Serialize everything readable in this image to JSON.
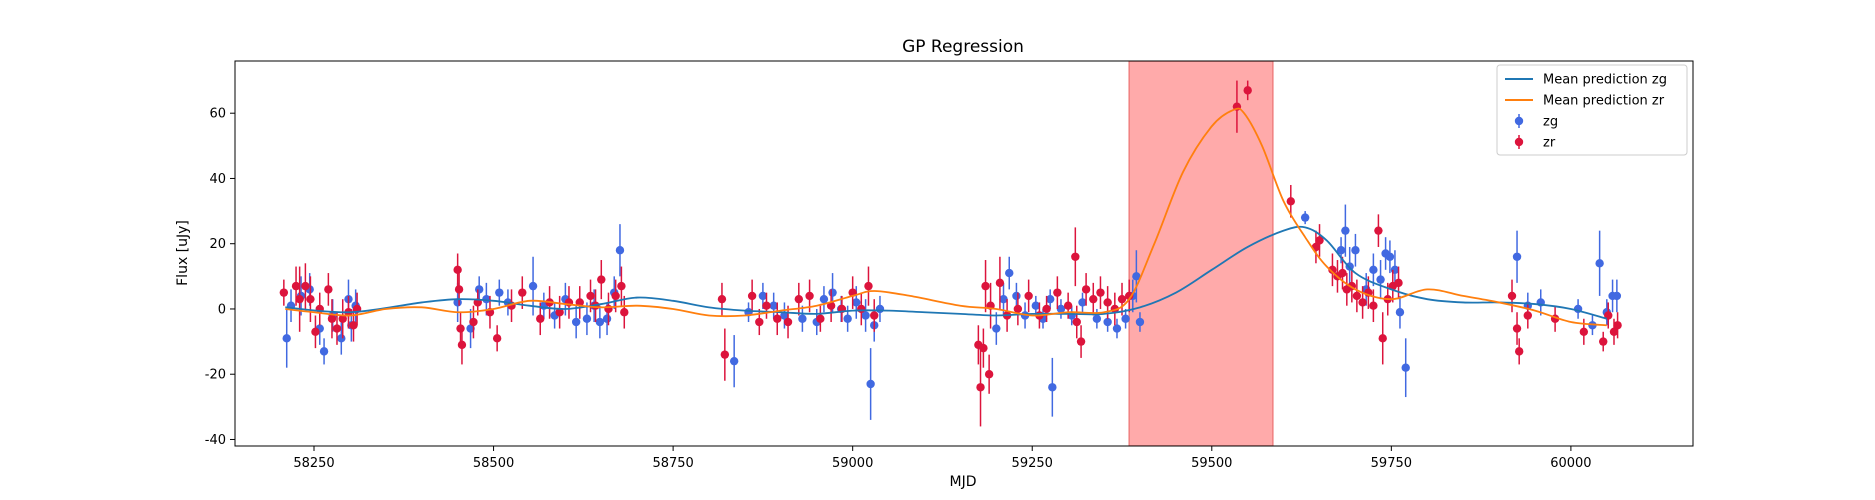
{
  "chart_data": {
    "type": "scatter",
    "title": "GP Regression",
    "xlabel": "MJD",
    "ylabel": "Flux [uJy]",
    "xlim": [
      58140,
      60170
    ],
    "ylim": [
      -42,
      76
    ],
    "xticks": [
      58250,
      58500,
      58750,
      59000,
      59250,
      59500,
      59750,
      60000
    ],
    "yticks": [
      -40,
      -20,
      0,
      20,
      40,
      60
    ],
    "grid": false,
    "legend_position": "top-right",
    "highlight_region": {
      "x_start": 59385,
      "x_end": 59585,
      "color": "#ffaaaa"
    },
    "lines": [
      {
        "name": "Mean prediction zg",
        "color": "#1f77b4",
        "x": [
          58210,
          58300,
          58400,
          58450,
          58500,
          58550,
          58600,
          58650,
          58700,
          58750,
          58800,
          58850,
          58900,
          58950,
          59000,
          59050,
          59100,
          59150,
          59200,
          59250,
          59300,
          59350,
          59400,
          59450,
          59500,
          59550,
          59600,
          59630,
          59660,
          59700,
          59750,
          59800,
          59850,
          59900,
          59950,
          60000,
          60050
        ],
        "y": [
          0.5,
          -1,
          2,
          3,
          2.5,
          1,
          0,
          1.5,
          3.5,
          2.5,
          0.5,
          -0.5,
          -1,
          -1.5,
          -0.5,
          -0.5,
          -1,
          -1.5,
          -2,
          -1.5,
          -1.5,
          -1.5,
          0.5,
          5,
          12,
          19,
          24,
          25,
          21,
          11,
          6,
          3,
          2,
          2,
          1.5,
          0,
          -3
        ]
      },
      {
        "name": "Mean prediction zr",
        "color": "#ff7f0e",
        "x": [
          58210,
          58250,
          58300,
          58350,
          58400,
          58450,
          58500,
          58550,
          58600,
          58650,
          58700,
          58750,
          58800,
          58850,
          58900,
          58950,
          59000,
          59030,
          59080,
          59150,
          59200,
          59250,
          59300,
          59350,
          59385,
          59420,
          59460,
          59500,
          59530,
          59545,
          59570,
          59600,
          59630,
          59660,
          59700,
          59750,
          59800,
          59850,
          59900,
          59950,
          60000,
          60050
        ],
        "y": [
          0,
          -1,
          -2,
          0,
          0.5,
          -1,
          0,
          2.5,
          1.5,
          0.5,
          1,
          0,
          -2,
          -2,
          -0.5,
          1,
          4,
          5.5,
          4,
          1,
          0,
          -2,
          -1,
          -1,
          3,
          20,
          42,
          56,
          61,
          60,
          50,
          33,
          22,
          13,
          6,
          3,
          6,
          4,
          2,
          -0.5,
          -4,
          -5
        ]
      }
    ],
    "series": [
      {
        "name": "zg",
        "color": "#4169e1",
        "points": [
          [
            58212,
            -9,
            9
          ],
          [
            58218,
            1,
            5
          ],
          [
            58232,
            4,
            6
          ],
          [
            58244,
            6,
            5
          ],
          [
            58258,
            -6,
            5
          ],
          [
            58264,
            -13,
            4
          ],
          [
            58276,
            -2,
            5
          ],
          [
            58288,
            -9,
            5
          ],
          [
            58298,
            3,
            6
          ],
          [
            58302,
            -5,
            5
          ],
          [
            58308,
            1,
            5
          ],
          [
            58450,
            2,
            6
          ],
          [
            58468,
            -6,
            6
          ],
          [
            58480,
            6,
            4
          ],
          [
            58490,
            3,
            5
          ],
          [
            58508,
            5,
            4
          ],
          [
            58520,
            2,
            4
          ],
          [
            58555,
            7,
            9
          ],
          [
            58570,
            1,
            4
          ],
          [
            58585,
            -2,
            4
          ],
          [
            58600,
            3,
            5
          ],
          [
            58615,
            -4,
            5
          ],
          [
            58630,
            -3,
            5
          ],
          [
            58640,
            1,
            5
          ],
          [
            58648,
            -4,
            5
          ],
          [
            58658,
            -3,
            5
          ],
          [
            58668,
            5,
            5
          ],
          [
            58676,
            18,
            8
          ],
          [
            58835,
            -16,
            8
          ],
          [
            58855,
            -1,
            3
          ],
          [
            58875,
            4,
            4
          ],
          [
            58890,
            1,
            4
          ],
          [
            58905,
            -2,
            4
          ],
          [
            58930,
            -3,
            4
          ],
          [
            58950,
            -4,
            4
          ],
          [
            58960,
            3,
            4
          ],
          [
            58972,
            5,
            6
          ],
          [
            58984,
            0,
            4
          ],
          [
            58993,
            -3,
            4
          ],
          [
            59005,
            2,
            5
          ],
          [
            59018,
            -2,
            5
          ],
          [
            59025,
            -23,
            11
          ],
          [
            59030,
            -5,
            5
          ],
          [
            59038,
            0,
            4
          ],
          [
            59200,
            -6,
            5
          ],
          [
            59210,
            3,
            5
          ],
          [
            59218,
            11,
            5
          ],
          [
            59228,
            4,
            4
          ],
          [
            59240,
            -2,
            4
          ],
          [
            59255,
            1,
            3
          ],
          [
            59265,
            -3,
            3
          ],
          [
            59275,
            3,
            3
          ],
          [
            59278,
            -24,
            9
          ],
          [
            59290,
            0,
            3
          ],
          [
            59305,
            -2,
            3
          ],
          [
            59320,
            2,
            3
          ],
          [
            59340,
            -3,
            3
          ],
          [
            59355,
            -4,
            3
          ],
          [
            59368,
            -6,
            3
          ],
          [
            59380,
            -3,
            3
          ],
          [
            59390,
            4,
            5
          ],
          [
            59395,
            10,
            8
          ],
          [
            59400,
            -4,
            3
          ],
          [
            59630,
            28,
            2
          ],
          [
            59680,
            18,
            4
          ],
          [
            59686,
            24,
            8
          ],
          [
            59692,
            13,
            6
          ],
          [
            59700,
            18,
            5
          ],
          [
            59715,
            6,
            5
          ],
          [
            59725,
            12,
            5
          ],
          [
            59735,
            9,
            6
          ],
          [
            59742,
            17,
            5
          ],
          [
            59748,
            16,
            5
          ],
          [
            59755,
            12,
            6
          ],
          [
            59762,
            -1,
            5
          ],
          [
            59770,
            -18,
            9
          ],
          [
            59925,
            16,
            8
          ],
          [
            59940,
            1,
            4
          ],
          [
            59958,
            2,
            4
          ],
          [
            60010,
            0,
            3
          ],
          [
            60030,
            -5,
            3
          ],
          [
            60040,
            14,
            10
          ],
          [
            60050,
            -1,
            4
          ],
          [
            60058,
            4,
            5
          ],
          [
            60064,
            4,
            5
          ]
        ]
      },
      {
        "name": "zr",
        "color": "#dc143c",
        "points": [
          [
            58208,
            5,
            4
          ],
          [
            58225,
            7,
            6
          ],
          [
            58230,
            3,
            10
          ],
          [
            58238,
            7,
            7
          ],
          [
            58245,
            3,
            7
          ],
          [
            58252,
            -7,
            5
          ],
          [
            58258,
            0,
            5
          ],
          [
            58270,
            6,
            5
          ],
          [
            58275,
            -3,
            6
          ],
          [
            58282,
            -6,
            5
          ],
          [
            58290,
            -3,
            6
          ],
          [
            58298,
            -1,
            5
          ],
          [
            58305,
            -5,
            5
          ],
          [
            58310,
            0,
            5
          ],
          [
            58450,
            12,
            5
          ],
          [
            58452,
            6,
            5
          ],
          [
            58454,
            -6,
            5
          ],
          [
            58456,
            -11,
            6
          ],
          [
            58472,
            -4,
            5
          ],
          [
            58478,
            2,
            4
          ],
          [
            58495,
            -1,
            5
          ],
          [
            58505,
            -9,
            4
          ],
          [
            58525,
            1,
            5
          ],
          [
            58540,
            5,
            5
          ],
          [
            58565,
            -3,
            5
          ],
          [
            58578,
            2,
            5
          ],
          [
            58592,
            -1,
            5
          ],
          [
            58605,
            2,
            5
          ],
          [
            58620,
            2,
            5
          ],
          [
            58635,
            4,
            5
          ],
          [
            58642,
            1,
            5
          ],
          [
            58650,
            9,
            6
          ],
          [
            58660,
            0,
            5
          ],
          [
            58670,
            4,
            5
          ],
          [
            58678,
            7,
            6
          ],
          [
            58682,
            -1,
            5
          ],
          [
            58818,
            3,
            5
          ],
          [
            58822,
            -14,
            8
          ],
          [
            58860,
            4,
            5
          ],
          [
            58870,
            -4,
            4
          ],
          [
            58880,
            1,
            4
          ],
          [
            58895,
            -3,
            5
          ],
          [
            58910,
            -4,
            5
          ],
          [
            58925,
            3,
            5
          ],
          [
            58940,
            4,
            5
          ],
          [
            58955,
            -3,
            4
          ],
          [
            58970,
            1,
            5
          ],
          [
            58985,
            0,
            4
          ],
          [
            59000,
            5,
            5
          ],
          [
            59012,
            0,
            5
          ],
          [
            59022,
            7,
            6
          ],
          [
            59030,
            -2,
            5
          ],
          [
            59175,
            -11,
            6
          ],
          [
            59178,
            -24,
            12
          ],
          [
            59182,
            -12,
            6
          ],
          [
            59185,
            7,
            8
          ],
          [
            59190,
            -20,
            6
          ],
          [
            59192,
            1,
            7
          ],
          [
            59205,
            8,
            8
          ],
          [
            59215,
            -2,
            5
          ],
          [
            59230,
            0,
            5
          ],
          [
            59245,
            4,
            5
          ],
          [
            59260,
            -2,
            4
          ],
          [
            59270,
            0,
            4
          ],
          [
            59285,
            5,
            5
          ],
          [
            59300,
            1,
            4
          ],
          [
            59310,
            16,
            9
          ],
          [
            59312,
            -4,
            5
          ],
          [
            59318,
            -10,
            5
          ],
          [
            59325,
            6,
            5
          ],
          [
            59335,
            3,
            5
          ],
          [
            59345,
            5,
            5
          ],
          [
            59355,
            2,
            5
          ],
          [
            59365,
            0,
            5
          ],
          [
            59375,
            3,
            5
          ],
          [
            59385,
            4,
            5
          ],
          [
            59535,
            62,
            8
          ],
          [
            59550,
            67,
            3
          ],
          [
            59610,
            33,
            5
          ],
          [
            59645,
            19,
            5
          ],
          [
            59650,
            21,
            5
          ],
          [
            59668,
            12,
            5
          ],
          [
            59675,
            10,
            5
          ],
          [
            59682,
            11,
            5
          ],
          [
            59688,
            6,
            5
          ],
          [
            59695,
            7,
            5
          ],
          [
            59702,
            4,
            5
          ],
          [
            59710,
            2,
            5
          ],
          [
            59718,
            5,
            5
          ],
          [
            59725,
            1,
            5
          ],
          [
            59732,
            24,
            5
          ],
          [
            59738,
            -9,
            8
          ],
          [
            59745,
            3,
            5
          ],
          [
            59752,
            7,
            5
          ],
          [
            59760,
            8,
            5
          ],
          [
            59918,
            4,
            5
          ],
          [
            59925,
            -6,
            5
          ],
          [
            59928,
            -13,
            4
          ],
          [
            59940,
            -2,
            4
          ],
          [
            59978,
            -3,
            4
          ],
          [
            60018,
            -7,
            4
          ],
          [
            60045,
            -10,
            3
          ],
          [
            60052,
            -2,
            4
          ],
          [
            60060,
            -7,
            4
          ],
          [
            60065,
            -5,
            4
          ]
        ]
      }
    ]
  }
}
